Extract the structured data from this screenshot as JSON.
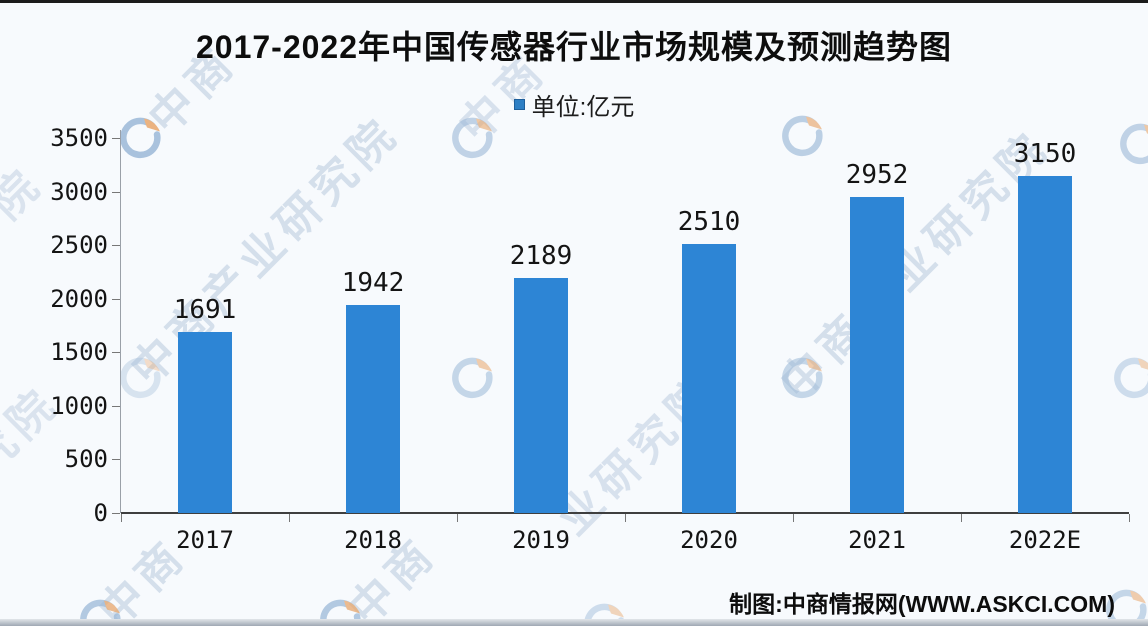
{
  "title": "2017-2022年中国传感器行业市场规模及预测趋势图",
  "legend": {
    "label": "单位:亿元"
  },
  "chart_data": {
    "type": "bar",
    "title": "2017-2022年中国传感器行业市场规模及预测趋势图",
    "categories": [
      "2017",
      "2018",
      "2019",
      "2020",
      "2021",
      "2022E"
    ],
    "values": [
      1691,
      1942,
      2189,
      2510,
      2952,
      3150
    ],
    "unit_label": "单位:亿元",
    "xlabel": "",
    "ylabel": "",
    "ylim": [
      0,
      3500
    ],
    "yticks": [
      0,
      500,
      1000,
      1500,
      2000,
      2500,
      3000,
      3500
    ],
    "grid": false,
    "legend_position": "top",
    "value_labels_shown": true
  },
  "footer": {
    "credit": "制图:中商情报网(WWW.ASKCI.COM)"
  },
  "watermark": {
    "text": "中商产业研究院",
    "fragments": [
      "中商产业研究院",
      "中商产业研究院",
      "业研究院",
      "中商",
      "中商",
      "中商",
      "中商",
      "院",
      "究院"
    ],
    "logo_name": "askci-ring-logo"
  },
  "colors": {
    "bar": "#2d85d5",
    "legend_marker": "#2d7fc4",
    "axis": "#3f3f3f",
    "watermark_text": "#b9c9de",
    "logo_blue": "#9cb9d8",
    "logo_orange": "#e9a76c",
    "background": "#f7fafd"
  }
}
